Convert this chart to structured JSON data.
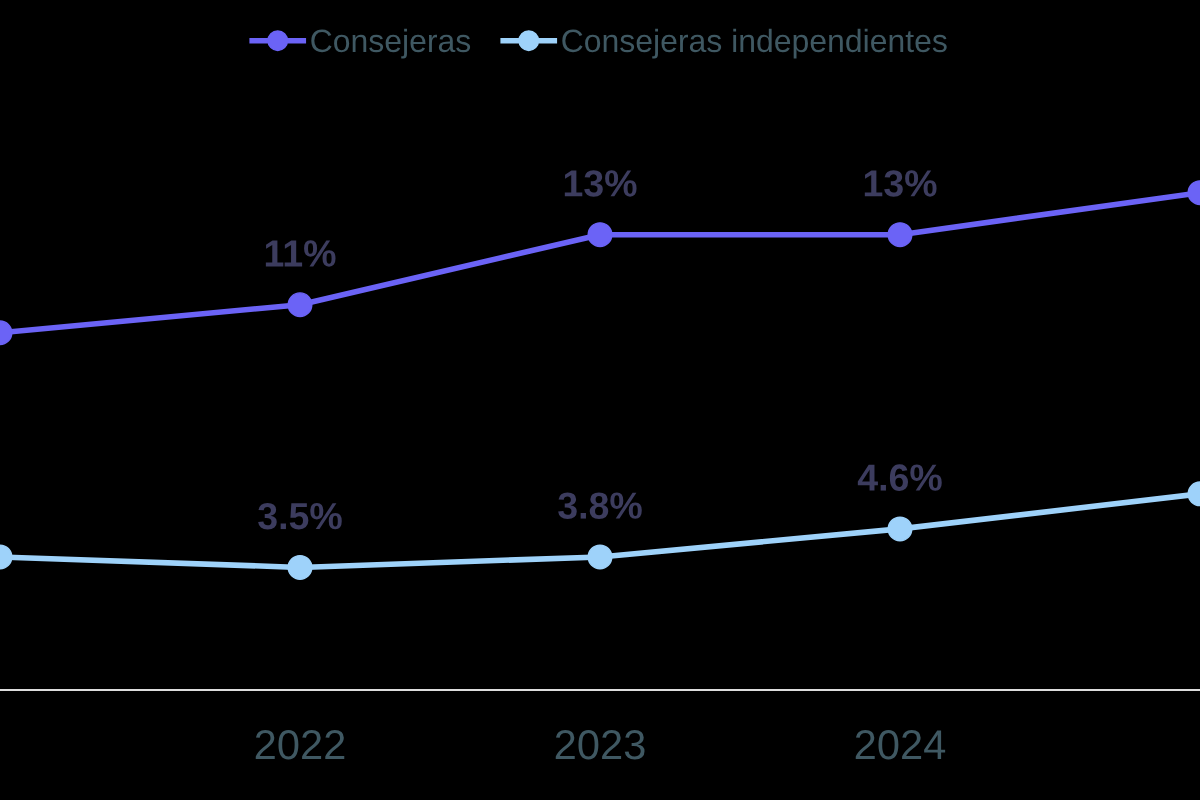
{
  "chart_data": {
    "type": "line",
    "categories": [
      null,
      "2022",
      "2023",
      "2024",
      null
    ],
    "series": [
      {
        "name": "Consejeras",
        "color": "#6b63f6",
        "values": [
          10.2,
          11,
          13,
          13,
          14.2
        ],
        "value_labels": [
          null,
          "11%",
          "13%",
          "13%",
          null
        ]
      },
      {
        "name": "Consejeras independientes",
        "color": "#9ed2fa",
        "values": [
          3.8,
          3.5,
          3.8,
          4.6,
          5.6
        ],
        "value_labels": [
          null,
          "3.5%",
          "3.8%",
          "4.6%",
          null
        ]
      }
    ],
    "ylim": [
      0,
      19.7
    ],
    "tick_labels": "x",
    "grid": false,
    "legend": "top",
    "marker": "circle",
    "line_style": "solid"
  }
}
